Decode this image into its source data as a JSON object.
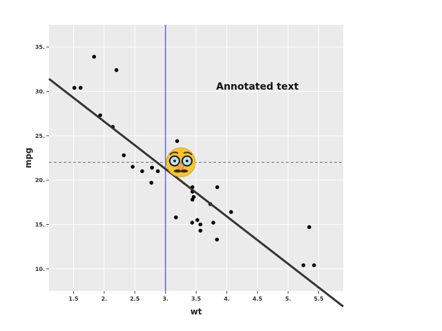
{
  "chart_data": {
    "type": "scatter",
    "title": "",
    "xlabel": "wt",
    "ylabel": "mpg",
    "xlim": [
      1.1,
      5.9
    ],
    "ylim": [
      7.5,
      37.5
    ],
    "xticks": [
      1.5,
      2,
      2.5,
      3,
      3.5,
      4,
      4.5,
      5,
      5.5
    ],
    "xtick_labels": [
      "1.5",
      "2.",
      "2.5",
      "3.",
      "3.5",
      "4.",
      "4.5",
      "5.",
      "5.5"
    ],
    "yticks": [
      10,
      15,
      20,
      25,
      30,
      35
    ],
    "ytick_labels": [
      "10.",
      "15.",
      "20.",
      "25.",
      "30.",
      "35."
    ],
    "grid": true,
    "panel_color": "#ebebeb",
    "point_color": "#000000",
    "points": [
      {
        "x": 2.62,
        "y": 21.0
      },
      {
        "x": 2.875,
        "y": 21.0
      },
      {
        "x": 2.32,
        "y": 22.8
      },
      {
        "x": 3.215,
        "y": 21.4
      },
      {
        "x": 3.44,
        "y": 18.7
      },
      {
        "x": 3.46,
        "y": 18.1
      },
      {
        "x": 3.57,
        "y": 14.3
      },
      {
        "x": 3.19,
        "y": 24.4
      },
      {
        "x": 3.15,
        "y": 22.8
      },
      {
        "x": 3.44,
        "y": 19.2
      },
      {
        "x": 3.44,
        "y": 17.8
      },
      {
        "x": 4.07,
        "y": 16.4
      },
      {
        "x": 3.73,
        "y": 17.3
      },
      {
        "x": 3.78,
        "y": 15.2
      },
      {
        "x": 5.25,
        "y": 10.4
      },
      {
        "x": 5.424,
        "y": 10.4
      },
      {
        "x": 5.345,
        "y": 14.7
      },
      {
        "x": 2.2,
        "y": 32.4
      },
      {
        "x": 1.615,
        "y": 30.4
      },
      {
        "x": 1.835,
        "y": 33.9
      },
      {
        "x": 2.465,
        "y": 21.5
      },
      {
        "x": 3.52,
        "y": 15.5
      },
      {
        "x": 3.435,
        "y": 15.2
      },
      {
        "x": 3.84,
        "y": 13.3
      },
      {
        "x": 3.845,
        "y": 19.2
      },
      {
        "x": 1.935,
        "y": 27.3
      },
      {
        "x": 2.14,
        "y": 26.0
      },
      {
        "x": 1.513,
        "y": 30.4
      },
      {
        "x": 3.17,
        "y": 15.8
      },
      {
        "x": 2.77,
        "y": 19.7
      },
      {
        "x": 3.57,
        "y": 15.0
      },
      {
        "x": 2.78,
        "y": 21.4
      }
    ],
    "regression_line": {
      "intercept": 37.285,
      "slope": -5.344,
      "color": "#333333"
    },
    "vline": {
      "x": 3.0,
      "color": "#5b63e6"
    },
    "hline": {
      "y": 22.0,
      "color": "#666666",
      "style": "dashed"
    },
    "annotation": {
      "text": "Annotated text",
      "x": 4.5,
      "y": 30.2
    },
    "emoji_marker": {
      "x": 3.25,
      "y": 22.0,
      "icon": "disguised-face-emoji"
    }
  }
}
